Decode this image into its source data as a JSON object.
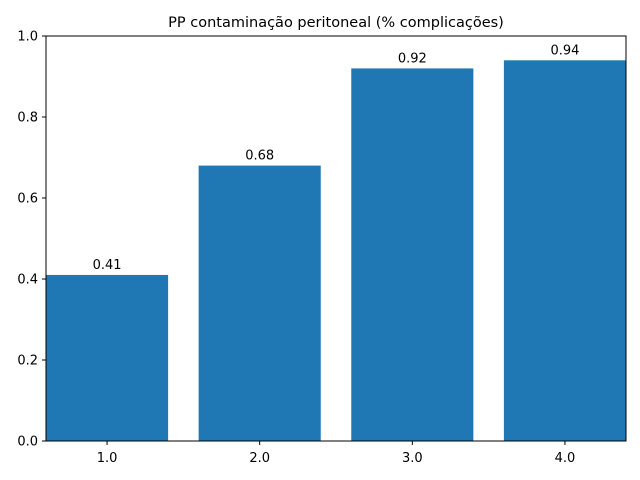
{
  "chart_data": {
    "type": "bar",
    "title": "PP contaminação peritoneal (% complicações)",
    "xlabel": "",
    "ylabel": "",
    "categories": [
      "1.0",
      "2.0",
      "3.0",
      "4.0"
    ],
    "values": [
      0.41,
      0.68,
      0.92,
      0.94
    ],
    "data_labels": [
      "0.41",
      "0.68",
      "0.92",
      "0.94"
    ],
    "ylim": [
      0,
      1.0
    ],
    "yticks": [
      0.0,
      0.2,
      0.4,
      0.6,
      0.8,
      1.0
    ],
    "ytick_labels": [
      "0.0",
      "0.2",
      "0.4",
      "0.6",
      "0.8",
      "1.0"
    ],
    "grid": false,
    "legend": "none",
    "bar_color": "#1f77b4"
  }
}
